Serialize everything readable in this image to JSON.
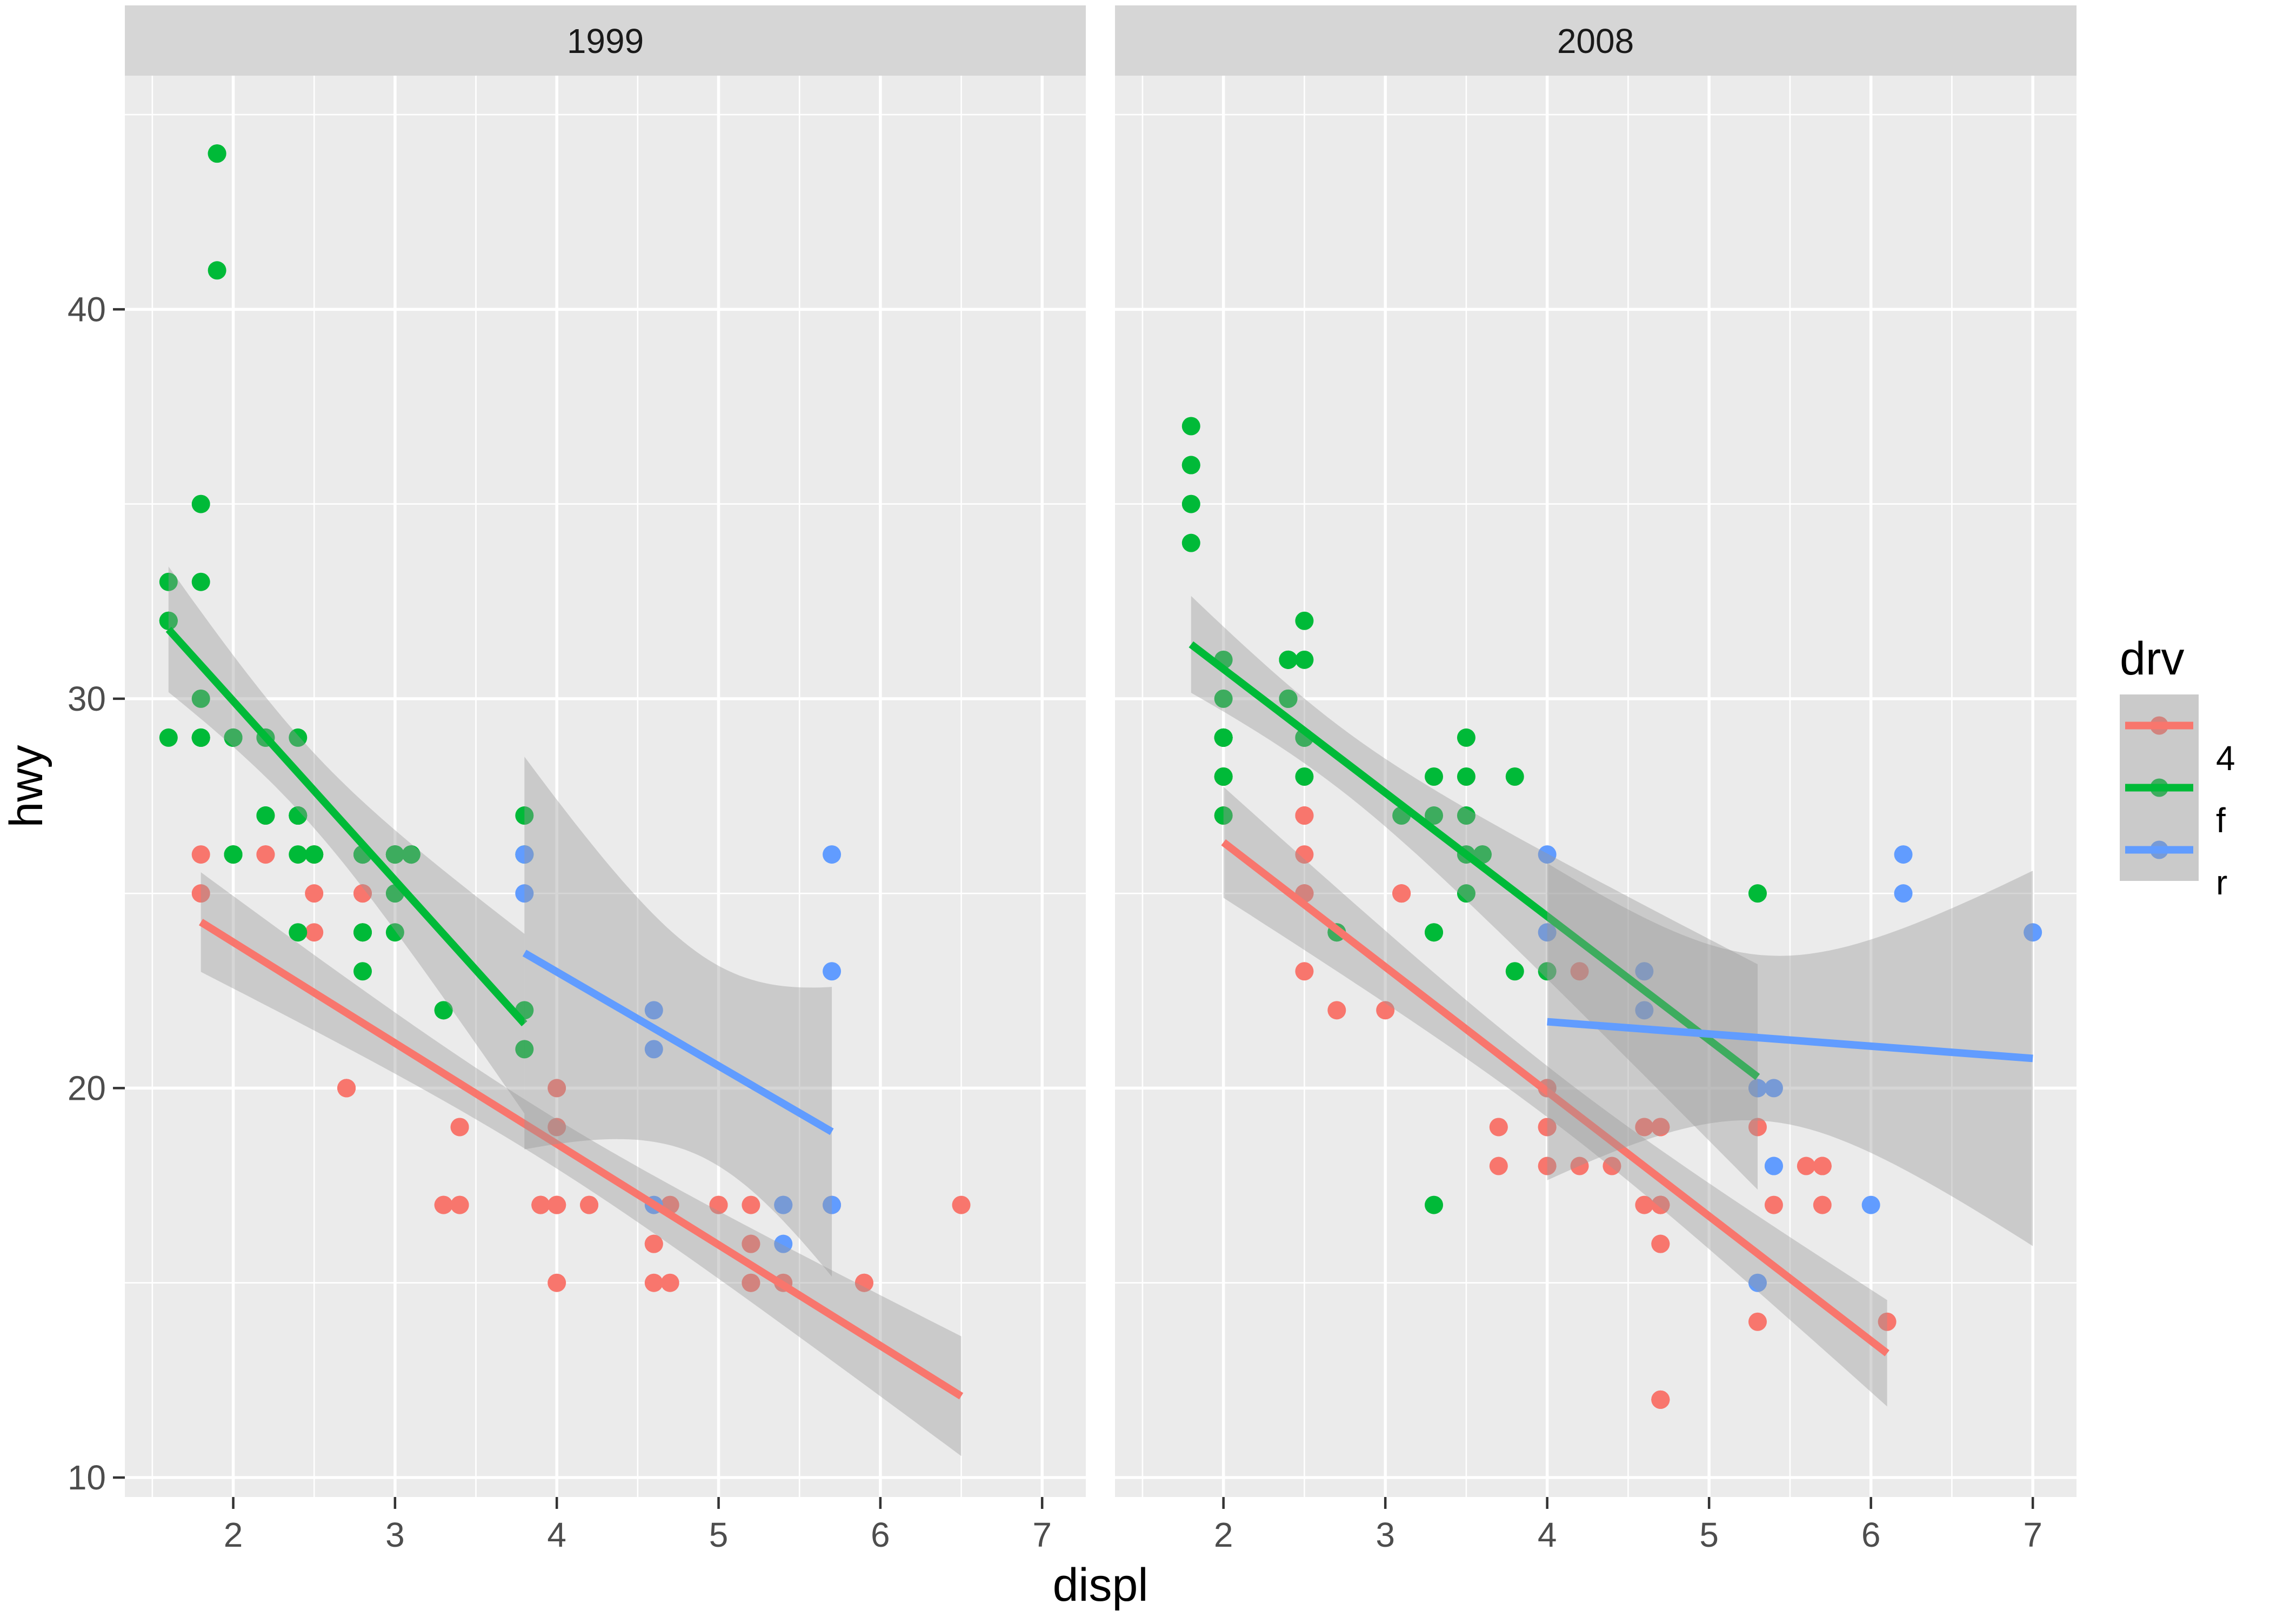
{
  "chart_data": {
    "type": "scatter",
    "title": "",
    "xlabel": "displ",
    "ylabel": "hwy",
    "facet_by": "year",
    "x_ticks": [
      2,
      3,
      4,
      5,
      6,
      7
    ],
    "y_ticks": [
      10,
      20,
      30,
      40
    ],
    "x_minor_ticks": [
      1.5,
      2.5,
      3.5,
      4.5,
      5.5,
      6.5,
      7.0
    ],
    "y_minor_ticks": [
      15,
      25,
      35,
      45
    ],
    "xlim": [
      1.33,
      7.27
    ],
    "ylim": [
      9.5,
      46
    ],
    "grid": "on",
    "legend_position": "right",
    "legend": {
      "title": "drv",
      "entries": [
        {
          "label": "4",
          "color": "#F8766D"
        },
        {
          "label": "f",
          "color": "#00BA38"
        },
        {
          "label": "r",
          "color": "#619CFF"
        }
      ]
    },
    "smooth": {
      "method": "lm",
      "level": 0.95,
      "ribbon_color": "#999999",
      "ribbon_alpha": 0.4
    },
    "style": {
      "panel_bg": "#EBEBEB",
      "strip_bg": "#D6D6D6",
      "grid_color": "#FFFFFF",
      "tick_label_color": "#4D4D4D",
      "tick_mark_color": "#333333",
      "title_color": "#000000",
      "strip_text_color": "#1A1A1A"
    },
    "facets": [
      {
        "label": "1999",
        "groups": [
          {
            "name": "4",
            "color": "#F8766D",
            "points": [
              [
                1.8,
                26
              ],
              [
                1.8,
                25
              ],
              [
                2.8,
                25
              ],
              [
                2.8,
                25
              ],
              [
                2.8,
                24
              ],
              [
                5.7,
                17
              ],
              [
                6.5,
                17
              ],
              [
                3.9,
                17
              ],
              [
                3.9,
                17
              ],
              [
                5.2,
                17
              ],
              [
                5.2,
                15
              ],
              [
                3.9,
                17
              ],
              [
                5.2,
                16
              ],
              [
                5.9,
                15
              ],
              [
                5.2,
                15
              ],
              [
                5.2,
                16
              ],
              [
                5.9,
                15
              ],
              [
                4.0,
                17
              ],
              [
                4.0,
                19
              ],
              [
                4.0,
                17
              ],
              [
                5.0,
                17
              ],
              [
                4.2,
                17
              ],
              [
                4.2,
                17
              ],
              [
                4.6,
                16
              ],
              [
                4.6,
                16
              ],
              [
                5.4,
                15
              ],
              [
                4.0,
                20
              ],
              [
                4.7,
                17
              ],
              [
                4.0,
                15
              ],
              [
                4.6,
                15
              ],
              [
                4.0,
                17
              ],
              [
                5.0,
                17
              ],
              [
                3.3,
                17
              ],
              [
                3.3,
                17
              ],
              [
                2.5,
                25
              ],
              [
                2.5,
                24
              ],
              [
                2.2,
                26
              ],
              [
                2.2,
                26
              ],
              [
                2.5,
                26
              ],
              [
                2.5,
                26
              ],
              [
                2.7,
                20
              ],
              [
                2.7,
                20
              ],
              [
                3.4,
                19
              ],
              [
                3.4,
                17
              ],
              [
                4.7,
                15
              ],
              [
                2.7,
                20
              ],
              [
                2.7,
                20
              ],
              [
                3.4,
                17
              ],
              [
                3.4,
                19
              ]
            ]
          },
          {
            "name": "f",
            "color": "#00BA38",
            "points": [
              [
                1.8,
                29
              ],
              [
                1.8,
                29
              ],
              [
                2.8,
                26
              ],
              [
                2.8,
                26
              ],
              [
                2.4,
                27
              ],
              [
                3.1,
                26
              ],
              [
                2.4,
                24
              ],
              [
                3.0,
                24
              ],
              [
                3.3,
                22
              ],
              [
                3.3,
                22
              ],
              [
                3.8,
                22
              ],
              [
                3.8,
                21
              ],
              [
                1.6,
                33
              ],
              [
                1.6,
                32
              ],
              [
                1.6,
                32
              ],
              [
                1.6,
                29
              ],
              [
                1.6,
                32
              ],
              [
                2.4,
                26
              ],
              [
                2.4,
                27
              ],
              [
                2.5,
                26
              ],
              [
                2.5,
                26
              ],
              [
                2.0,
                26
              ],
              [
                2.0,
                29
              ],
              [
                2.4,
                29
              ],
              [
                2.4,
                27
              ],
              [
                3.0,
                26
              ],
              [
                3.0,
                25
              ],
              [
                3.1,
                26
              ],
              [
                3.8,
                26
              ],
              [
                3.8,
                27
              ],
              [
                2.2,
                29
              ],
              [
                2.2,
                27
              ],
              [
                3.0,
                26
              ],
              [
                3.0,
                26
              ],
              [
                2.2,
                27
              ],
              [
                2.2,
                29
              ],
              [
                3.0,
                26
              ],
              [
                3.0,
                26
              ],
              [
                1.8,
                30
              ],
              [
                1.8,
                33
              ],
              [
                1.8,
                35
              ],
              [
                2.0,
                29
              ],
              [
                2.0,
                26
              ],
              [
                2.8,
                24
              ],
              [
                1.9,
                44
              ],
              [
                2.0,
                29
              ],
              [
                2.0,
                26
              ],
              [
                2.8,
                23
              ],
              [
                2.8,
                24
              ],
              [
                1.9,
                44
              ],
              [
                1.9,
                41
              ],
              [
                2.0,
                29
              ],
              [
                2.0,
                26
              ],
              [
                1.8,
                29
              ],
              [
                1.8,
                29
              ],
              [
                2.8,
                26
              ],
              [
                2.8,
                26
              ]
            ]
          },
          {
            "name": "r",
            "color": "#619CFF",
            "points": [
              [
                5.7,
                17
              ],
              [
                5.7,
                26
              ],
              [
                5.7,
                23
              ],
              [
                4.6,
                17
              ],
              [
                5.4,
                17
              ],
              [
                3.8,
                26
              ],
              [
                3.8,
                25
              ],
              [
                4.6,
                21
              ],
              [
                4.6,
                22
              ],
              [
                5.4,
                17
              ],
              [
                5.4,
                16
              ]
            ]
          }
        ]
      },
      {
        "label": "2008",
        "groups": [
          {
            "name": "4",
            "color": "#F8766D",
            "points": [
              [
                2.0,
                28
              ],
              [
                2.0,
                27
              ],
              [
                3.1,
                25
              ],
              [
                3.1,
                25
              ],
              [
                3.1,
                25
              ],
              [
                4.2,
                23
              ],
              [
                5.3,
                19
              ],
              [
                5.3,
                14
              ],
              [
                3.7,
                19
              ],
              [
                3.7,
                18
              ],
              [
                4.7,
                19
              ],
              [
                4.7,
                19
              ],
              [
                4.7,
                12
              ],
              [
                4.7,
                17
              ],
              [
                4.7,
                17
              ],
              [
                4.7,
                12
              ],
              [
                5.7,
                18
              ],
              [
                4.7,
                16
              ],
              [
                4.7,
                12
              ],
              [
                4.7,
                17
              ],
              [
                4.7,
                17
              ],
              [
                4.7,
                16
              ],
              [
                4.7,
                17
              ],
              [
                5.7,
                17
              ],
              [
                4.0,
                19
              ],
              [
                4.6,
                19
              ],
              [
                4.6,
                17
              ],
              [
                5.4,
                17
              ],
              [
                3.0,
                22
              ],
              [
                3.7,
                19
              ],
              [
                4.7,
                12
              ],
              [
                4.7,
                19
              ],
              [
                5.7,
                18
              ],
              [
                6.1,
                14
              ],
              [
                4.2,
                18
              ],
              [
                4.4,
                18
              ],
              [
                4.0,
                19
              ],
              [
                4.6,
                19
              ],
              [
                4.0,
                20
              ],
              [
                5.6,
                18
              ],
              [
                2.5,
                27
              ],
              [
                2.5,
                25
              ],
              [
                2.5,
                26
              ],
              [
                2.5,
                23
              ],
              [
                2.5,
                25
              ],
              [
                2.5,
                27
              ],
              [
                2.5,
                25
              ],
              [
                2.5,
                27
              ],
              [
                4.0,
                20
              ],
              [
                4.7,
                17
              ],
              [
                5.7,
                18
              ],
              [
                2.7,
                22
              ],
              [
                4.0,
                18
              ],
              [
                4.0,
                20
              ]
            ]
          },
          {
            "name": "f",
            "color": "#00BA38",
            "points": [
              [
                2.0,
                31
              ],
              [
                2.0,
                30
              ],
              [
                3.1,
                27
              ],
              [
                2.4,
                30
              ],
              [
                3.5,
                29
              ],
              [
                3.6,
                26
              ],
              [
                3.3,
                24
              ],
              [
                3.3,
                24
              ],
              [
                3.3,
                17
              ],
              [
                3.8,
                23
              ],
              [
                4.0,
                23
              ],
              [
                1.8,
                34
              ],
              [
                1.8,
                36
              ],
              [
                1.8,
                36
              ],
              [
                2.0,
                29
              ],
              [
                2.4,
                30
              ],
              [
                2.4,
                31
              ],
              [
                2.4,
                30
              ],
              [
                3.3,
                28
              ],
              [
                2.0,
                28
              ],
              [
                2.0,
                27
              ],
              [
                2.7,
                24
              ],
              [
                2.7,
                24
              ],
              [
                2.5,
                31
              ],
              [
                2.5,
                32
              ],
              [
                3.5,
                27
              ],
              [
                3.5,
                26
              ],
              [
                3.5,
                25
              ],
              [
                3.8,
                28
              ],
              [
                5.3,
                25
              ],
              [
                2.4,
                31
              ],
              [
                2.4,
                31
              ],
              [
                3.5,
                28
              ],
              [
                2.4,
                31
              ],
              [
                2.4,
                31
              ],
              [
                3.3,
                27
              ],
              [
                1.8,
                37
              ],
              [
                1.8,
                35
              ],
              [
                2.0,
                29
              ],
              [
                2.0,
                29
              ],
              [
                2.0,
                29
              ],
              [
                2.0,
                29
              ],
              [
                2.5,
                29
              ],
              [
                2.5,
                29
              ],
              [
                2.5,
                28
              ],
              [
                2.5,
                29
              ],
              [
                2.0,
                28
              ],
              [
                2.0,
                29
              ],
              [
                3.6,
                26
              ]
            ]
          },
          {
            "name": "r",
            "color": "#619CFF",
            "points": [
              [
                5.3,
                20
              ],
              [
                5.3,
                15
              ],
              [
                5.3,
                20
              ],
              [
                6.0,
                17
              ],
              [
                6.2,
                26
              ],
              [
                6.2,
                25
              ],
              [
                7.0,
                24
              ],
              [
                5.4,
                18
              ],
              [
                4.0,
                26
              ],
              [
                4.0,
                24
              ],
              [
                4.6,
                23
              ],
              [
                4.6,
                22
              ],
              [
                5.4,
                20
              ],
              [
                5.4,
                18
              ]
            ]
          }
        ]
      }
    ]
  }
}
